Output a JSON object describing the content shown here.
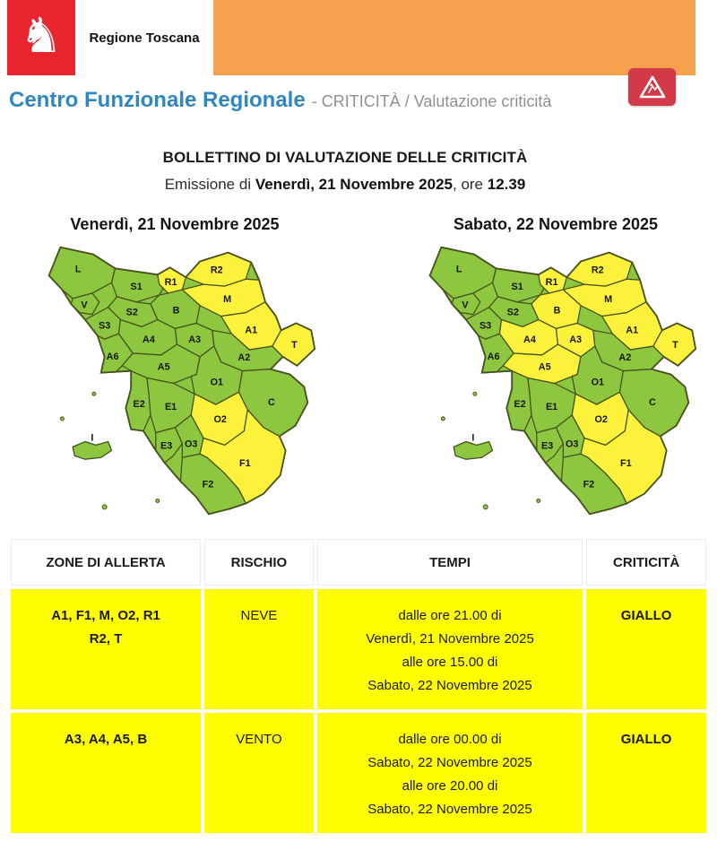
{
  "brand": {
    "logo_icon": "pegasus-icon",
    "logo_text": "Regione Toscana"
  },
  "header": {
    "title": "Centro Funzionale Regionale",
    "subtitle": "- CRITICITÀ / Valutazione criticità",
    "warning_icon": "warning-triangle-icon"
  },
  "bulletin": {
    "title": "BOLLETTINO DI VALUTAZIONE DELLE CRITICITÀ",
    "emission_prefix": "Emissione di ",
    "emission_date": "Venerdì, 21 Novembre 2025",
    "emission_mid": ", ore ",
    "emission_time": "12.39"
  },
  "colors": {
    "orange": "#F6A14D",
    "brand_red": "#EA2530",
    "button_red": "#D23A47",
    "blue": "#2F87C1",
    "green": "#8DC63F",
    "map_yellow": "#FCF23C",
    "table_yellow": "#FFFF00",
    "border_green": "#47521F"
  },
  "zones": [
    "L",
    "V",
    "S1",
    "R1",
    "R2",
    "M",
    "B",
    "S2",
    "S3",
    "A4",
    "A3",
    "A1",
    "T",
    "A2",
    "A6",
    "A5",
    "O1",
    "C",
    "E2",
    "E1",
    "O2",
    "E3",
    "O3",
    "F1",
    "F2",
    "I"
  ],
  "maps": [
    {
      "title": "Venerdì, 21 Novembre 2025",
      "yellow_zones": [
        "R1",
        "R2",
        "M",
        "A1",
        "T",
        "O2",
        "F1"
      ]
    },
    {
      "title": "Sabato, 22 Novembre 2025",
      "yellow_zones": [
        "R1",
        "R2",
        "M",
        "B",
        "A4",
        "A3",
        "A5",
        "A1",
        "T",
        "O2",
        "F1"
      ]
    }
  ],
  "table": {
    "columns": [
      "ZONE DI ALLERTA",
      "RISCHIO",
      "TEMPI",
      "CRITICITÀ"
    ],
    "rows": [
      {
        "zones_lines": [
          "A1, F1, M, O2, R1",
          "R2, T"
        ],
        "risk": "NEVE",
        "tempi_lines": [
          "dalle ore 21.00 di",
          "Venerdì, 21 Novembre 2025",
          "alle ore 15.00 di",
          "Sabato, 22 Novembre 2025"
        ],
        "criticita": "GIALLO"
      },
      {
        "zones_lines": [
          "A3, A4, A5, B"
        ],
        "risk": "VENTO",
        "tempi_lines": [
          "dalle ore 00.00 di",
          "Sabato, 22 Novembre 2025",
          "alle ore 20.00 di",
          "Sabato, 22 Novembre 2025"
        ],
        "criticita": "GIALLO"
      }
    ]
  }
}
